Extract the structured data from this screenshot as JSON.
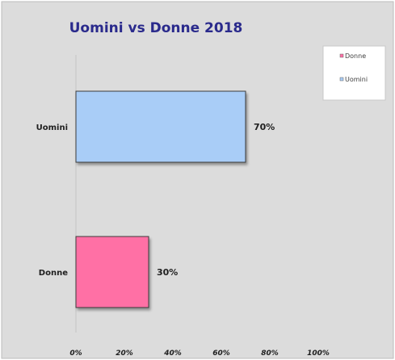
{
  "chart_data": {
    "type": "bar",
    "orientation": "horizontal",
    "title": "Uomini vs Donne 2018",
    "categories": [
      "Uomini",
      "Donne"
    ],
    "values": [
      70,
      30
    ],
    "value_labels": [
      "70%",
      "30%"
    ],
    "xlim": [
      0,
      100
    ],
    "x_ticks": [
      0,
      20,
      40,
      60,
      80,
      100
    ],
    "x_tick_labels": [
      "0%",
      "20%",
      "40%",
      "60%",
      "80%",
      "100%"
    ],
    "legend": {
      "placement": "top-right",
      "entries": [
        {
          "label": "Donne",
          "color": "#ff6fa5"
        },
        {
          "label": "Uomini",
          "color": "#a9cdf7"
        }
      ]
    },
    "colors": {
      "Uomini": "#a9cdf7",
      "Donne": "#ff6fa5",
      "title": "#2a2a8c",
      "plot_background": "#dcdcdc"
    },
    "grid": false
  }
}
